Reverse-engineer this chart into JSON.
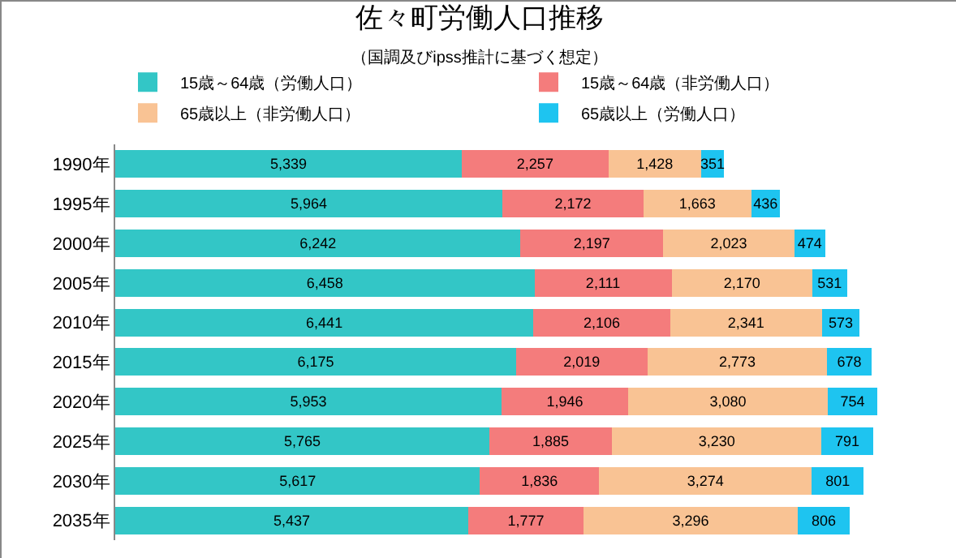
{
  "chart_data": {
    "type": "bar",
    "title": "佐々町労働人口推移",
    "subtitle": "（国調及びipss推計に基づく想定）",
    "orientation": "horizontal",
    "stacked": true,
    "legend": "top",
    "tick_labels": "y",
    "grid": false,
    "categories": [
      "1990年",
      "1995年",
      "2000年",
      "2005年",
      "2010年",
      "2015年",
      "2020年",
      "2025年",
      "2030年",
      "2035年"
    ],
    "series": [
      {
        "name": "15歳～64歳（労働人口）",
        "color": "#33c6c6",
        "values": [
          5339,
          5964,
          6242,
          6458,
          6441,
          6175,
          5953,
          5765,
          5617,
          5437
        ],
        "value_labels": [
          "5,339",
          "5,964",
          "6,242",
          "6,458",
          "6,441",
          "6,175",
          "5,953",
          "5,765",
          "5,617",
          "5,437"
        ]
      },
      {
        "name": "15歳～64歳（非労働人口）",
        "color": "#f47c7c",
        "values": [
          2257,
          2172,
          2197,
          2111,
          2106,
          2019,
          1946,
          1885,
          1836,
          1777
        ],
        "value_labels": [
          "2,257",
          "2,172",
          "2,197",
          "2,111",
          "2,106",
          "2,019",
          "1,946",
          "1,885",
          "1,836",
          "1,777"
        ]
      },
      {
        "name": "65歳以上（非労働人口）",
        "color": "#f9c394",
        "values": [
          1428,
          1663,
          2023,
          2170,
          2341,
          2773,
          3080,
          3230,
          3274,
          3296
        ],
        "value_labels": [
          "1,428",
          "1,663",
          "2,023",
          "2,170",
          "2,341",
          "2,773",
          "3,080",
          "3,230",
          "3,274",
          "3,296"
        ]
      },
      {
        "name": "65歳以上（労働人口）",
        "color": "#1ec4f0",
        "values": [
          351,
          436,
          474,
          531,
          573,
          678,
          754,
          791,
          801,
          806
        ],
        "value_labels": [
          "351",
          "436",
          "474",
          "531",
          "573",
          "678",
          "754",
          "791",
          "801",
          "806"
        ]
      }
    ]
  }
}
